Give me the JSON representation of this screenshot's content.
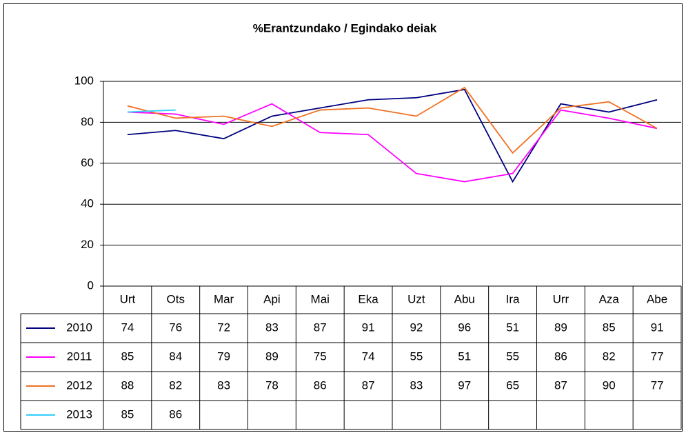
{
  "chart_data": {
    "type": "line",
    "title": "%Erantzundako / Egindako deiak",
    "categories": [
      "Urt",
      "Ots",
      "Mar",
      "Api",
      "Mai",
      "Eka",
      "Uzt",
      "Abu",
      "Ira",
      "Urr",
      "Aza",
      "Abe"
    ],
    "series": [
      {
        "name": "2010",
        "color": "#000080",
        "values": [
          74,
          76,
          72,
          83,
          87,
          91,
          92,
          96,
          51,
          89,
          85,
          91
        ]
      },
      {
        "name": "2011",
        "color": "#ff00ff",
        "values": [
          85,
          84,
          79,
          89,
          75,
          74,
          55,
          51,
          55,
          86,
          82,
          77
        ]
      },
      {
        "name": "2012",
        "color": "#f07020",
        "values": [
          88,
          82,
          83,
          78,
          86,
          87,
          83,
          97,
          65,
          87,
          90,
          77
        ]
      },
      {
        "name": "2013",
        "color": "#33ccff",
        "values": [
          85,
          86,
          null,
          null,
          null,
          null,
          null,
          null,
          null,
          null,
          null,
          null
        ]
      }
    ],
    "ylim": [
      0,
      100
    ],
    "yticks": [
      0,
      20,
      40,
      60,
      80,
      100
    ],
    "grid": true
  }
}
